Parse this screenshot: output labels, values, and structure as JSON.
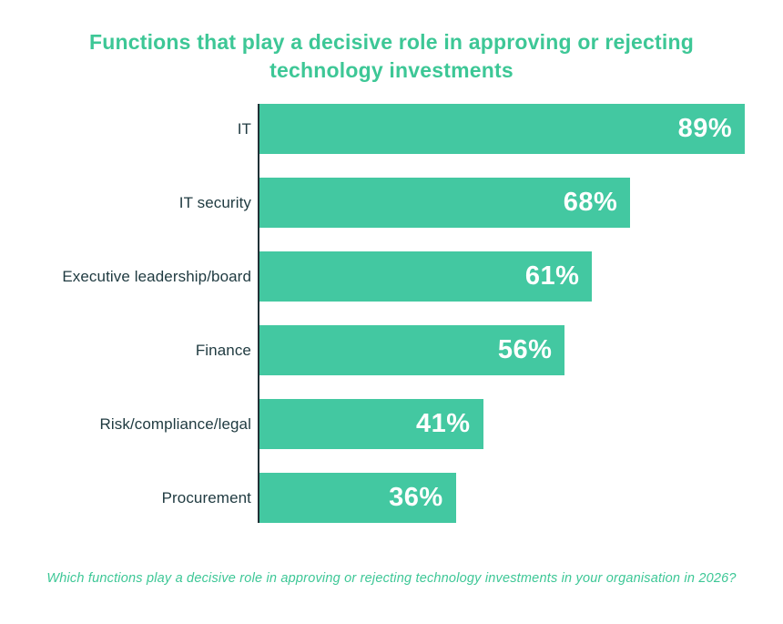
{
  "title": {
    "lines": [
      "Functions that play a decisive role in approving or rejecting",
      "technology investments"
    ]
  },
  "chart_data": {
    "type": "bar",
    "orientation": "horizontal",
    "title": "Functions that play a decisive role in approving or rejecting technology investments",
    "categories": [
      "IT",
      "IT security",
      "Executive leadership/board",
      "Finance",
      "Risk/compliance/legal",
      "Procurement"
    ],
    "values": [
      89,
      68,
      61,
      56,
      41,
      36
    ],
    "value_labels": [
      "89%",
      "68%",
      "61%",
      "56%",
      "41%",
      "36%"
    ],
    "xlabel": "",
    "ylabel": "",
    "xlim": [
      0,
      100
    ],
    "grid": false,
    "legend": "none",
    "data_labels_position": "inside-end",
    "footnote": "Which functions play a decisive role in approving or rejecting technology investments in your organisation in 2026?"
  },
  "colors": {
    "accent_teal": "#3dc796",
    "bar_fill": "#43c8a1",
    "label_dark": "#1f3a40",
    "axis_line": "#203136",
    "value_text": "#ffffff",
    "background": "#ffffff"
  }
}
